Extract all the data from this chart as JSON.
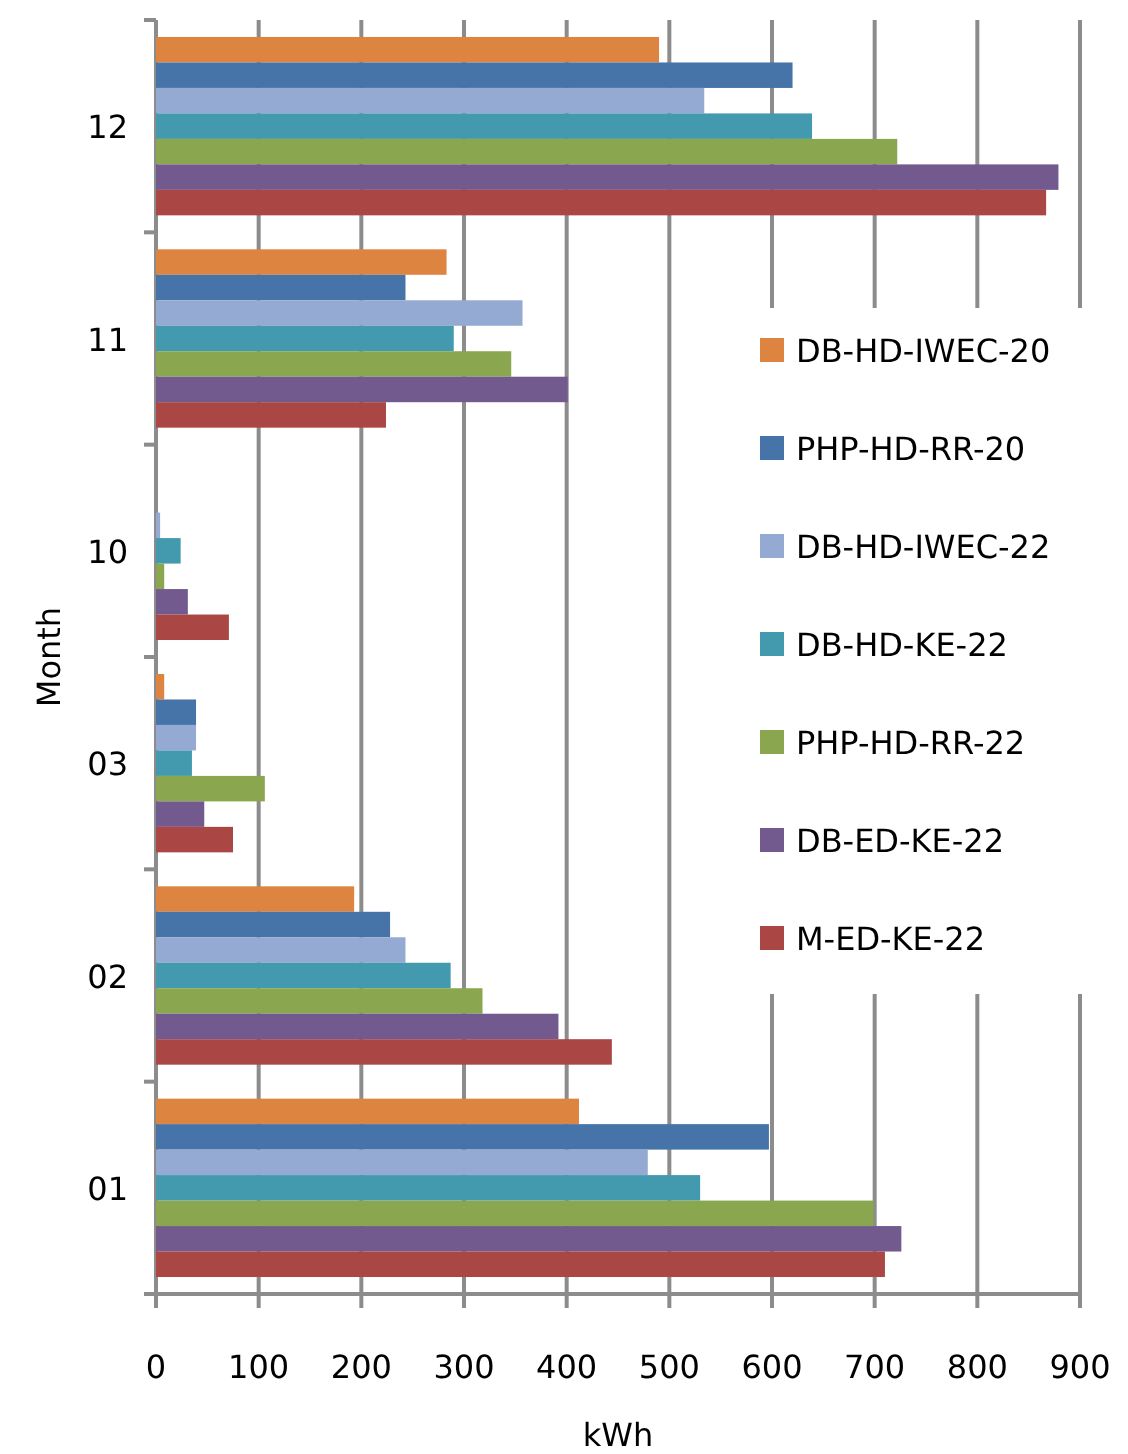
{
  "chart_data": {
    "type": "bar",
    "orientation": "horizontal",
    "xlabel": "kWh",
    "ylabel": "Month",
    "categories": [
      "12",
      "11",
      "10",
      "03",
      "02",
      "01"
    ],
    "xlim": [
      0,
      900
    ],
    "xticks": [
      0,
      100,
      200,
      300,
      400,
      500,
      600,
      700,
      800,
      900
    ],
    "grid": "x",
    "legend": "right",
    "series": [
      {
        "name": "DB-HD-IWEC-20",
        "color": "#dd8540",
        "values": [
          490,
          283,
          0,
          8,
          193,
          412
        ]
      },
      {
        "name": "PHP-HD-RR-20",
        "color": "#4674a8",
        "values": [
          620,
          243,
          0,
          39,
          228,
          597
        ]
      },
      {
        "name": "DB-HD-IWEC-22",
        "color": "#94aad2",
        "values": [
          534,
          357,
          4,
          39,
          243,
          479
        ]
      },
      {
        "name": "DB-HD-KE-22",
        "color": "#4399ae",
        "values": [
          639,
          290,
          24,
          35,
          287,
          530
        ]
      },
      {
        "name": "PHP-HD-RR-22",
        "color": "#8aa64f",
        "values": [
          722,
          346,
          8,
          106,
          318,
          699
        ]
      },
      {
        "name": "DB-ED-KE-22",
        "color": "#725a8e",
        "values": [
          879,
          401,
          31,
          47,
          392,
          726
        ]
      },
      {
        "name": "M-ED-KE-22",
        "color": "#aa4644",
        "values": [
          867,
          224,
          71,
          75,
          444,
          710
        ]
      }
    ]
  }
}
